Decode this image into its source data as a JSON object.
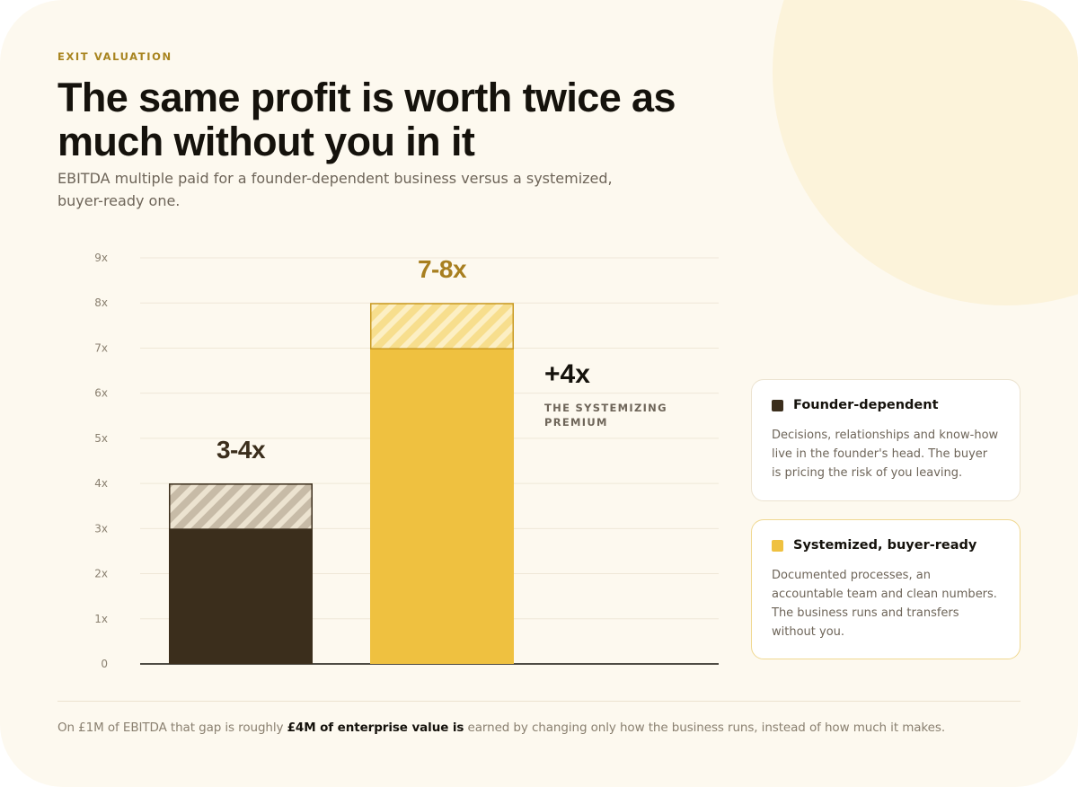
{
  "eyebrow": "EXIT VALUATION",
  "title": "The same profit is worth twice as much without you in it",
  "subtitle": "EBITDA multiple paid for a founder-dependent business versus a systemized, buyer-ready one.",
  "chart_data": {
    "type": "bar",
    "categories": [
      "Founder-dependent",
      "Systemized, buyer-ready"
    ],
    "ranges": [
      {
        "low": 3,
        "high": 4,
        "label": "3-4x"
      },
      {
        "low": 7,
        "high": 8,
        "label": "7-8x"
      }
    ],
    "ylim": [
      0,
      9
    ],
    "yticks": [
      "0",
      "1x",
      "2x",
      "3x",
      "4x",
      "5x",
      "6x",
      "7x",
      "8x",
      "9x"
    ],
    "grid": true,
    "annotation": {
      "value": "+4x",
      "label_lines": [
        "THE SYSTEMIZING",
        "PREMIUM"
      ]
    },
    "colors": {
      "founder": "#3b2e1c",
      "founder_hatch_bg": "#c7bba7",
      "founder_hatch_stripe": "#ece3d0",
      "systemized": "#efc140",
      "systemized_hatch_bg": "#f7de8d",
      "systemized_hatch_stripe": "#fcefc4",
      "founder_label": "#3b2e1c",
      "systemized_label": "#a87f1f"
    }
  },
  "legend": [
    {
      "title": "Founder-dependent",
      "color": "#3b2e1c",
      "description": "Decisions, relationships and know-how live in the founder's head. The buyer is pricing the risk of you leaving."
    },
    {
      "title": "Systemized, buyer-ready",
      "color": "#efc140",
      "description": "Documented processes, an accountable team and clean numbers. The business runs and transfers without you."
    }
  ],
  "footnote": {
    "before": "On £1M of EBITDA that gap is roughly ",
    "emphasis": "£4M of enterprise value is",
    "after": " earned by changing only how the business runs, instead of how much it makes."
  }
}
